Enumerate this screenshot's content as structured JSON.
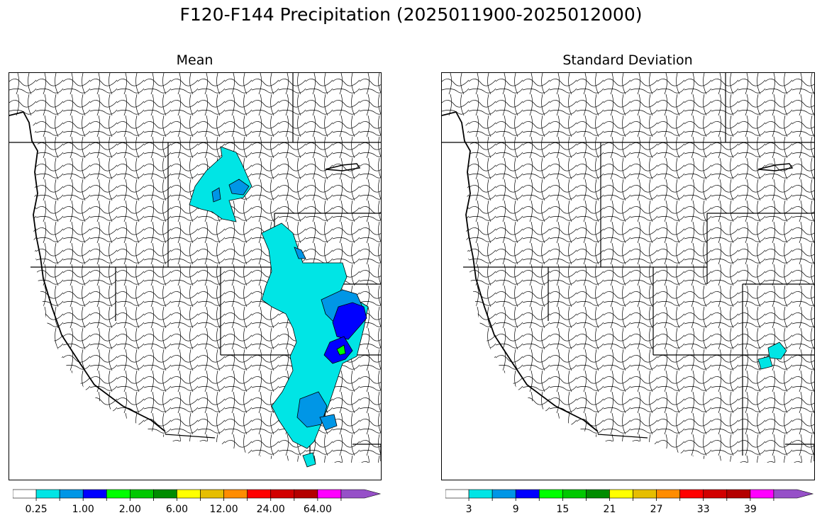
{
  "title": "F120-F144 Precipitation (2025011900-2025012000)",
  "panels": {
    "mean": {
      "title": "Mean",
      "colorbar": {
        "colors": [
          "#ffffff",
          "#00e5e5",
          "#0096e6",
          "#0000ff",
          "#00ff00",
          "#00c800",
          "#008c00",
          "#ffff00",
          "#e6be00",
          "#ff8c00",
          "#ff0000",
          "#d20000",
          "#b40000",
          "#ff00ff",
          "#9650c8"
        ],
        "tick_labels": [
          "0.25",
          "1.00",
          "2.00",
          "6.00",
          "12.00",
          "24.00",
          "64.00"
        ],
        "extend": "max"
      }
    },
    "std": {
      "title": "Standard Deviation",
      "colorbar": {
        "colors": [
          "#ffffff",
          "#00e5e5",
          "#0096e6",
          "#0000ff",
          "#00ff00",
          "#00c800",
          "#008c00",
          "#ffff00",
          "#e6be00",
          "#ff8c00",
          "#ff0000",
          "#d20000",
          "#b40000",
          "#ff00ff",
          "#9650c8"
        ],
        "tick_labels": [
          "3",
          "9",
          "15",
          "21",
          "27",
          "33",
          "39"
        ],
        "extend": "max"
      }
    }
  }
}
